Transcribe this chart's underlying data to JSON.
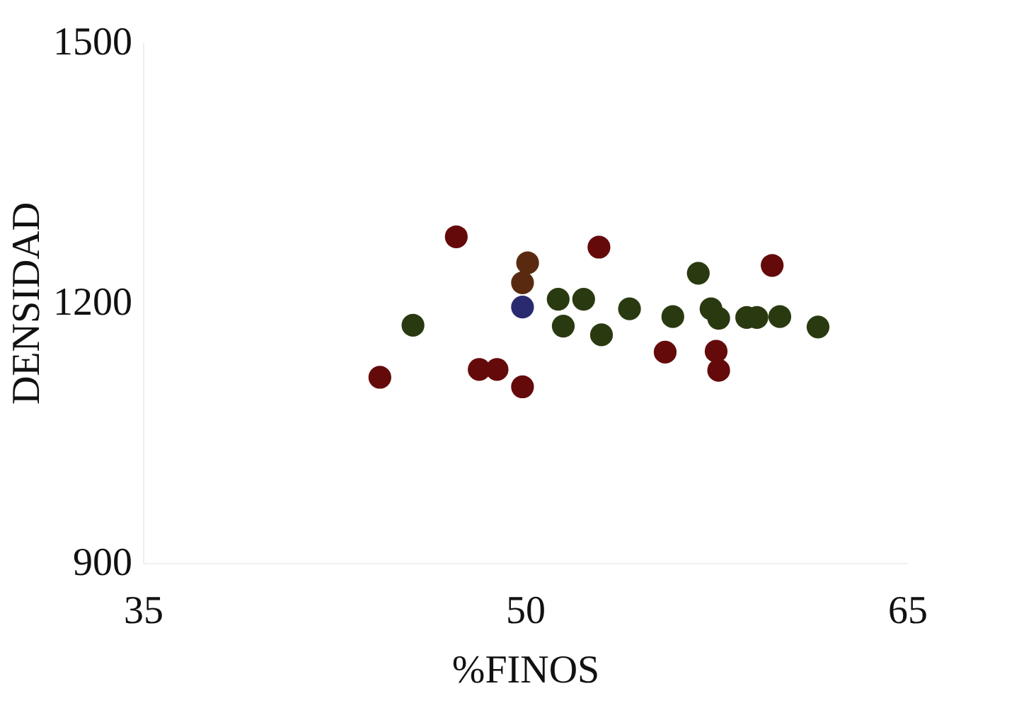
{
  "chart_data": {
    "type": "scatter",
    "xlabel": "%FINOS",
    "ylabel": "DENSIDAD",
    "xlim": [
      35,
      65
    ],
    "xticks": [
      35,
      50,
      65
    ],
    "ylim": [
      900,
      1500
    ],
    "yticks": [
      900,
      1200,
      1500
    ],
    "grid": false,
    "legend": false,
    "marker": "circle",
    "series": [
      {
        "color": "#650a0a",
        "x": [
          47.3,
          52.9,
          59.7,
          44.3,
          48.2,
          48.9,
          49.9,
          55.5,
          57.5,
          57.6
        ],
        "values": [
          1276,
          1264,
          1243,
          1114,
          1123,
          1123,
          1103,
          1143,
          1144,
          1122
        ]
      },
      {
        "color": "#5a2a10",
        "x": [
          50.1,
          49.9
        ],
        "values": [
          1246,
          1223
        ]
      },
      {
        "color": "#2a2a70",
        "x": [
          49.9
        ],
        "values": [
          1195
        ]
      },
      {
        "color": "#2a3a10",
        "x": [
          45.6,
          51.3,
          51.5,
          52.3,
          53.0,
          54.1,
          55.8,
          56.8,
          57.3,
          57.6,
          58.7,
          59.1,
          60.0,
          61.5
        ],
        "values": [
          1174,
          1204,
          1173,
          1204,
          1163,
          1193,
          1184,
          1234,
          1193,
          1182,
          1183,
          1183,
          1184,
          1172
        ]
      }
    ]
  }
}
